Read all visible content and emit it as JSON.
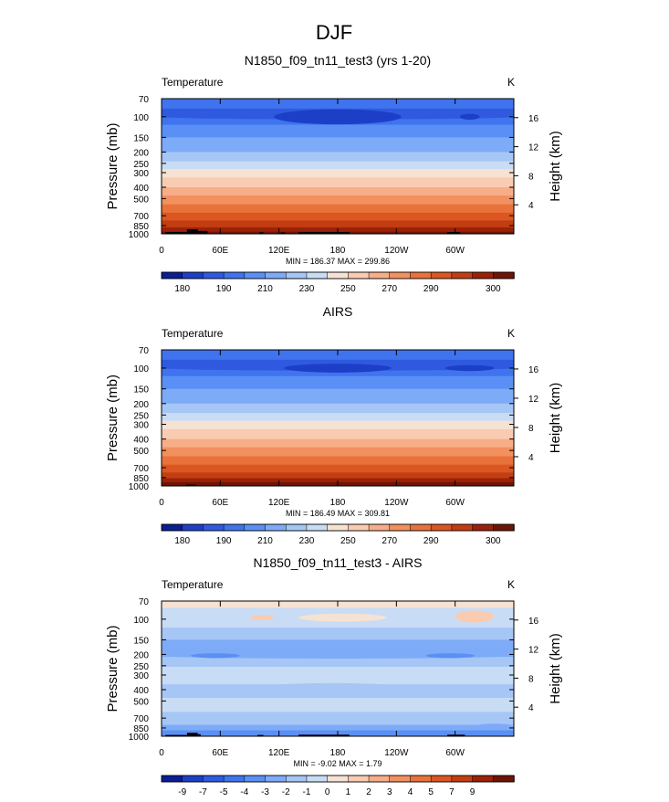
{
  "figure": {
    "title": "DJF"
  },
  "chart_data": [
    {
      "type": "heatmap",
      "title": "N1850_f09_tn11_test3 (yrs 1-20)",
      "variable_label": "Temperature",
      "units_label": "K",
      "ylabel_left": "Pressure (mb)",
      "ylabel_right": "Height (km)",
      "x_ticks": [
        "0",
        "60E",
        "120E",
        "180",
        "120W",
        "60W"
      ],
      "y_ticks_left": [
        "70",
        "100",
        "150",
        "200",
        "250",
        "300",
        "400",
        "500",
        "700",
        "850",
        "1000"
      ],
      "y_ticks_right": [
        "16",
        "12",
        "8",
        "4"
      ],
      "min_max_text": "MIN = 186.37  MAX = 299.86",
      "min": 186.37,
      "max": 299.86,
      "colorbar_labels": [
        "180",
        "190",
        "210",
        "230",
        "250",
        "270",
        "290",
        "300"
      ],
      "colorbar_colors": [
        "#0a1e96",
        "#1d3fc8",
        "#2f5ae0",
        "#3f74ee",
        "#5a90f5",
        "#7eabf7",
        "#a6c6f6",
        "#c9dcf5",
        "#f6e2d2",
        "#f9cbb1",
        "#f7ae88",
        "#f2905f",
        "#e8723a",
        "#db5621",
        "#c23e12",
        "#9a2208",
        "#6e1406"
      ],
      "bands": [
        {
          "p": 85,
          "level": 3
        },
        {
          "p": 100,
          "level": 2
        },
        {
          "p": 117,
          "level": 3
        },
        {
          "p": 150,
          "level": 4
        },
        {
          "p": 200,
          "level": 5
        },
        {
          "p": 240,
          "level": 6
        },
        {
          "p": 280,
          "level": 7
        },
        {
          "p": 330,
          "level": 8
        },
        {
          "p": 400,
          "level": 9
        },
        {
          "p": 470,
          "level": 10
        },
        {
          "p": 560,
          "level": 11
        },
        {
          "p": 660,
          "level": 12
        },
        {
          "p": 770,
          "level": 13
        },
        {
          "p": 880,
          "level": 14
        },
        {
          "p": 960,
          "level": 15
        },
        {
          "p": 1000,
          "level": 16
        }
      ],
      "blobs": [
        {
          "lon": 0,
          "lon2": 360,
          "p": 100,
          "dp": 5,
          "level": 2
        },
        {
          "lon": 115,
          "lon2": 245,
          "p": 100,
          "dp": 16,
          "level": 1
        },
        {
          "lon": 305,
          "lon2": 325,
          "p": 100,
          "dp": 6,
          "level": 1
        }
      ],
      "topography": [
        {
          "lon": 4,
          "lon2": 26,
          "p": 965
        },
        {
          "lon": 26,
          "lon2": 37,
          "p": 915
        },
        {
          "lon": 37,
          "lon2": 47,
          "p": 945
        },
        {
          "lon": 100,
          "lon2": 104,
          "p": 965
        },
        {
          "lon": 122,
          "lon2": 126,
          "p": 970
        },
        {
          "lon": 140,
          "lon2": 192,
          "p": 965
        },
        {
          "lon": 292,
          "lon2": 305,
          "p": 965
        }
      ]
    },
    {
      "type": "heatmap",
      "title": "AIRS",
      "variable_label": "Temperature",
      "units_label": "K",
      "ylabel_left": "Pressure (mb)",
      "ylabel_right": "Height (km)",
      "x_ticks": [
        "0",
        "60E",
        "120E",
        "180",
        "120W",
        "60W"
      ],
      "y_ticks_left": [
        "70",
        "100",
        "150",
        "200",
        "250",
        "300",
        "400",
        "500",
        "700",
        "850",
        "1000"
      ],
      "y_ticks_right": [
        "16",
        "12",
        "8",
        "4"
      ],
      "min_max_text": "MIN = 186.49  MAX = 309.81",
      "min": 186.49,
      "max": 309.81,
      "colorbar_labels": [
        "180",
        "190",
        "210",
        "230",
        "250",
        "270",
        "290",
        "300"
      ],
      "colorbar_colors": [
        "#0a1e96",
        "#1d3fc8",
        "#2f5ae0",
        "#3f74ee",
        "#5a90f5",
        "#7eabf7",
        "#a6c6f6",
        "#c9dcf5",
        "#f6e2d2",
        "#f9cbb1",
        "#f7ae88",
        "#f2905f",
        "#e8723a",
        "#db5621",
        "#c23e12",
        "#9a2208",
        "#6e1406"
      ],
      "bands": [
        {
          "p": 85,
          "level": 3
        },
        {
          "p": 100,
          "level": 2
        },
        {
          "p": 117,
          "level": 3
        },
        {
          "p": 150,
          "level": 4
        },
        {
          "p": 200,
          "level": 5
        },
        {
          "p": 240,
          "level": 6
        },
        {
          "p": 280,
          "level": 7
        },
        {
          "p": 330,
          "level": 8
        },
        {
          "p": 400,
          "level": 9
        },
        {
          "p": 470,
          "level": 10
        },
        {
          "p": 560,
          "level": 11
        },
        {
          "p": 660,
          "level": 12
        },
        {
          "p": 770,
          "level": 13
        },
        {
          "p": 860,
          "level": 14
        },
        {
          "p": 930,
          "level": 15
        },
        {
          "p": 1000,
          "level": 16
        }
      ],
      "blobs": [
        {
          "lon": 0,
          "lon2": 360,
          "p": 100,
          "dp": 5,
          "level": 2
        },
        {
          "lon": 125,
          "lon2": 235,
          "p": 100,
          "dp": 9,
          "level": 1
        },
        {
          "lon": 290,
          "lon2": 340,
          "p": 100,
          "dp": 6,
          "level": 1
        }
      ],
      "topography": [
        {
          "lon": 25,
          "lon2": 35,
          "p": 975
        }
      ]
    },
    {
      "type": "heatmap",
      "title": "N1850_f09_tn11_test3 - AIRS",
      "variable_label": "Temperature",
      "units_label": "K",
      "ylabel_left": "Pressure (mb)",
      "ylabel_right": "Height (km)",
      "x_ticks": [
        "0",
        "60E",
        "120E",
        "180",
        "120W",
        "60W"
      ],
      "y_ticks_left": [
        "70",
        "100",
        "150",
        "200",
        "250",
        "300",
        "400",
        "500",
        "700",
        "850",
        "1000"
      ],
      "y_ticks_right": [
        "16",
        "12",
        "8",
        "4"
      ],
      "min_max_text": "MIN =  -9.02  MAX =   1.79",
      "min": -9.02,
      "max": 1.79,
      "colorbar_labels": [
        "-9",
        "-7",
        "-5",
        "-4",
        "-3",
        "-2",
        "-1",
        "0",
        "1",
        "2",
        "3",
        "4",
        "5",
        "7",
        "9"
      ],
      "colorbar_colors": [
        "#0a1e96",
        "#1d3fc8",
        "#2f5ae0",
        "#3f74ee",
        "#5a90f5",
        "#7eabf7",
        "#a6c6f6",
        "#c9dcf5",
        "#f6e2d2",
        "#f9cbb1",
        "#f7ae88",
        "#f2905f",
        "#e8723a",
        "#db5621",
        "#c23e12",
        "#9a2208",
        "#6e1406"
      ],
      "bands": [
        {
          "p": 80,
          "level": 8
        },
        {
          "p": 118,
          "level": 7
        },
        {
          "p": 150,
          "level": 6
        },
        {
          "p": 210,
          "level": 5
        },
        {
          "p": 255,
          "level": 6
        },
        {
          "p": 360,
          "level": 7
        },
        {
          "p": 470,
          "level": 6
        },
        {
          "p": 620,
          "level": 7
        },
        {
          "p": 800,
          "level": 6
        },
        {
          "p": 890,
          "level": 5
        },
        {
          "p": 1000,
          "level": 4
        }
      ],
      "blobs": [
        {
          "lon": 140,
          "lon2": 230,
          "p": 97,
          "dp": 8,
          "level": 8
        },
        {
          "lon": 90,
          "lon2": 115,
          "p": 97,
          "dp": 5,
          "level": 9
        },
        {
          "lon": 300,
          "lon2": 340,
          "p": 95,
          "dp": 12,
          "level": 9
        },
        {
          "lon": 0,
          "lon2": 360,
          "p": 205,
          "dp": 12,
          "level": 5
        },
        {
          "lon": 30,
          "lon2": 80,
          "p": 205,
          "dp": 10,
          "level": 4
        },
        {
          "lon": 270,
          "lon2": 320,
          "p": 205,
          "dp": 10,
          "level": 4
        },
        {
          "lon": 90,
          "lon2": 260,
          "p": 400,
          "dp": 55,
          "level": 6
        },
        {
          "lon": 320,
          "lon2": 360,
          "p": 820,
          "dp": 40,
          "level": 5
        }
      ],
      "topography": [
        {
          "lon": 4,
          "lon2": 26,
          "p": 975
        },
        {
          "lon": 26,
          "lon2": 37,
          "p": 935
        },
        {
          "lon": 37,
          "lon2": 40,
          "p": 960
        },
        {
          "lon": 98,
          "lon2": 104,
          "p": 975
        },
        {
          "lon": 140,
          "lon2": 192,
          "p": 970
        },
        {
          "lon": 292,
          "lon2": 310,
          "p": 970
        }
      ]
    }
  ]
}
